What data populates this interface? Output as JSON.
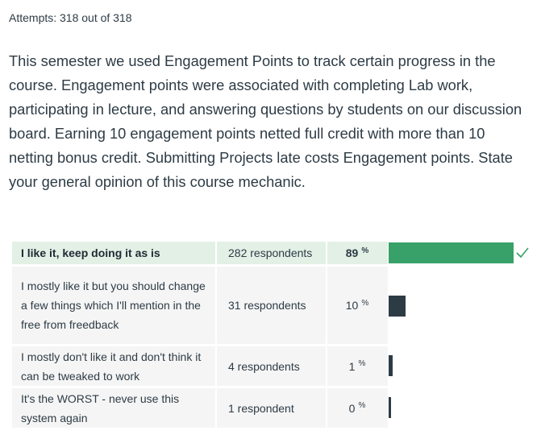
{
  "attempts_label": "Attempts: 318 out of 318",
  "question_text": "This semester we used Engagement Points to track certain progress in the course. Engagement points were associated with completing Lab work, participating in lecture, and answering questions by students on our discussion board.  Earning 10 engagement points netted full credit with more than 10 netting bonus credit. Submitting Projects late costs Engagement points.  State your general opinion of this course mechanic.",
  "colors": {
    "correct_bar": "#38a169",
    "bar": "#2d3b45",
    "correct_row_bg": "#e3f0e6",
    "row_bg": "#f5f5f5"
  },
  "answers": [
    {
      "text": "I like it, keep doing it as is",
      "respondents": "282 respondents",
      "percent": "89",
      "percent_sign": "%",
      "percent_value": 89,
      "correct": true
    },
    {
      "text": "I mostly like it but you should change a few things which I'll mention in the free from freedback",
      "respondents": "31 respondents",
      "percent": "10",
      "percent_sign": "%",
      "percent_value": 10,
      "correct": false
    },
    {
      "text": "I mostly don't like it and don't think it can be tweaked to work",
      "respondents": "4 respondents",
      "percent": "1",
      "percent_sign": "%",
      "percent_value": 1,
      "correct": false
    },
    {
      "text": "It's the WORST - never use this system again",
      "respondents": "1 respondent",
      "percent": "0",
      "percent_sign": "%",
      "percent_value": 0,
      "correct": false
    }
  ],
  "correct_icon": "checkmark-icon"
}
